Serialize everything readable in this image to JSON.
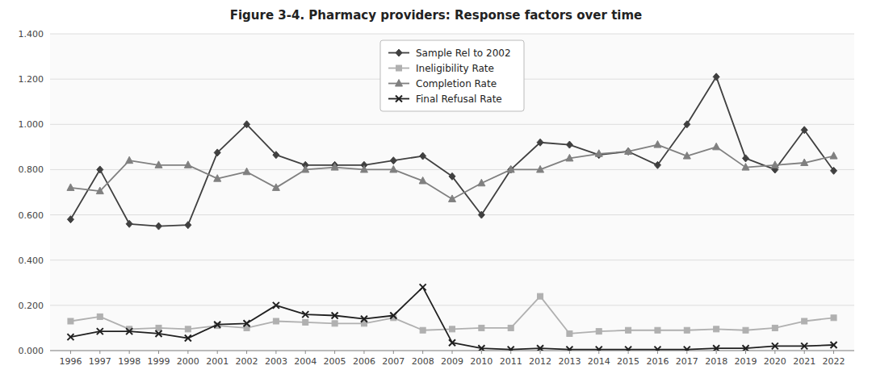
{
  "chart_data": {
    "type": "line",
    "title": "Figure 3-4. Pharmacy providers: Response factors over time",
    "x": [
      1996,
      1997,
      1998,
      1999,
      2000,
      2001,
      2002,
      2003,
      2004,
      2005,
      2006,
      2007,
      2008,
      2009,
      2010,
      2011,
      2012,
      2013,
      2014,
      2015,
      2016,
      2017,
      2018,
      2019,
      2020,
      2021,
      2022
    ],
    "xlim": [
      1995.3,
      2022.7
    ],
    "xticks": [
      1996,
      1997,
      1998,
      1999,
      2000,
      2001,
      2002,
      2003,
      2004,
      2005,
      2006,
      2007,
      2008,
      2009,
      2010,
      2011,
      2012,
      2013,
      2014,
      2015,
      2016,
      2017,
      2018,
      2019,
      2020,
      2021,
      2022
    ],
    "ylim": [
      0.0,
      1.4
    ],
    "yticks": [
      {
        "value": 0.0,
        "label": "0.000"
      },
      {
        "value": 0.2,
        "label": "0.200"
      },
      {
        "value": 0.4,
        "label": "0.400"
      },
      {
        "value": 0.6,
        "label": "0.600"
      },
      {
        "value": 0.8,
        "label": "0.800"
      },
      {
        "value": 1.0,
        "label": "1.000"
      },
      {
        "value": 1.2,
        "label": "1.200"
      },
      {
        "value": 1.4,
        "label": "1.400"
      }
    ],
    "grid": true,
    "legend": "upper center",
    "series": [
      {
        "name": "Sample Rel to 2002",
        "color": "#404040",
        "marker": "diamond",
        "values": [
          0.58,
          0.8,
          0.56,
          0.55,
          0.555,
          0.875,
          1.0,
          0.865,
          0.82,
          0.82,
          0.82,
          0.84,
          0.86,
          0.77,
          0.6,
          0.8,
          0.92,
          0.91,
          0.865,
          0.88,
          0.82,
          1.0,
          1.21,
          0.85,
          0.8,
          0.975,
          0.795
        ]
      },
      {
        "name": "Ineligibility Rate",
        "color": "#b0b0b0",
        "marker": "square",
        "values": [
          0.13,
          0.15,
          0.095,
          0.1,
          0.095,
          0.11,
          0.1,
          0.13,
          0.125,
          0.12,
          0.12,
          0.145,
          0.09,
          0.095,
          0.1,
          0.1,
          0.24,
          0.075,
          0.085,
          0.09,
          0.09,
          0.09,
          0.095,
          0.09,
          0.1,
          0.13,
          0.145
        ]
      },
      {
        "name": "Completion Rate",
        "color": "#808080",
        "marker": "triangle",
        "values": [
          0.72,
          0.705,
          0.84,
          0.82,
          0.82,
          0.76,
          0.79,
          0.72,
          0.8,
          0.81,
          0.8,
          0.8,
          0.75,
          0.67,
          0.74,
          0.8,
          0.8,
          0.85,
          0.87,
          0.88,
          0.91,
          0.86,
          0.9,
          0.81,
          0.82,
          0.83,
          0.86
        ]
      },
      {
        "name": "Final Refusal Rate",
        "color": "#202020",
        "marker": "x",
        "values": [
          0.06,
          0.085,
          0.085,
          0.075,
          0.055,
          0.115,
          0.12,
          0.2,
          0.16,
          0.155,
          0.14,
          0.155,
          0.28,
          0.035,
          0.01,
          0.005,
          0.01,
          0.005,
          0.005,
          0.005,
          0.005,
          0.005,
          0.01,
          0.01,
          0.02,
          0.02,
          0.025
        ]
      }
    ]
  }
}
